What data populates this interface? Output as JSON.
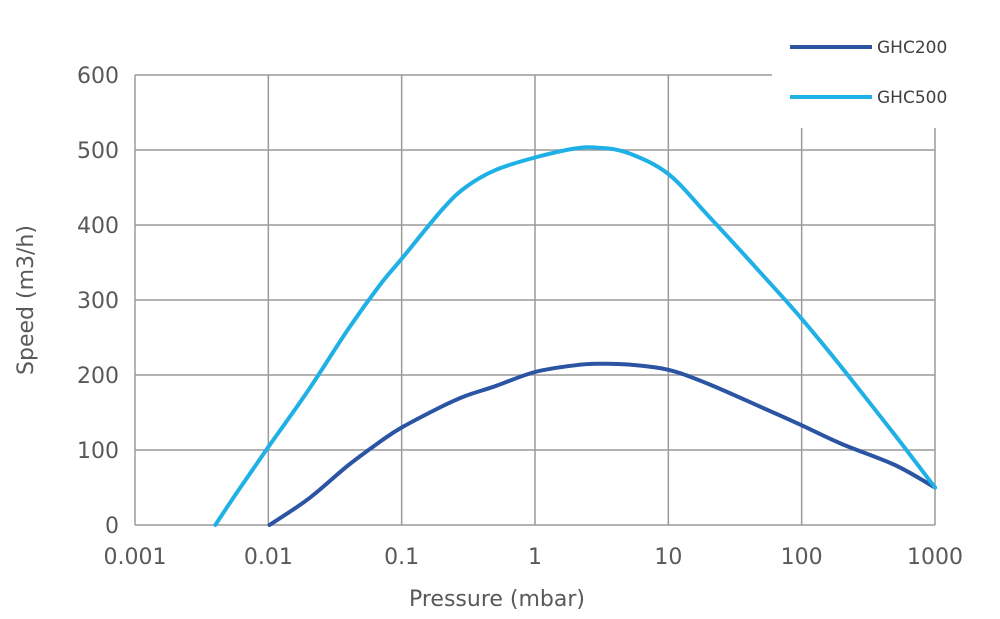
{
  "chart_data": {
    "type": "line",
    "title": "",
    "xlabel": "Pressure (mbar)",
    "ylabel": "Speed (m3/h)",
    "x_scale": "log",
    "xlim": [
      0.001,
      1000
    ],
    "ylim": [
      0,
      600
    ],
    "x_ticks": [
      "0.001",
      "0.01",
      "0.1",
      "1",
      "10",
      "100",
      "1000"
    ],
    "y_ticks": [
      "0",
      "100",
      "200",
      "300",
      "400",
      "500",
      "600"
    ],
    "grid": true,
    "legend_position": "top-right",
    "series": [
      {
        "name": "GHC200",
        "color": "#2b55a3",
        "x": [
          0.0102,
          0.02,
          0.04,
          0.07,
          0.1,
          0.2,
          0.3,
          0.5,
          1,
          2,
          3,
          5,
          10,
          20,
          50,
          100,
          200,
          500,
          1000
        ],
        "y": [
          0,
          35,
          80,
          112,
          130,
          158,
          172,
          185,
          204,
          213,
          215,
          214,
          207,
          188,
          157,
          133,
          108,
          80,
          50
        ]
      },
      {
        "name": "GHC500",
        "color": "#1fb0e6",
        "x": [
          0.004,
          0.006,
          0.01,
          0.02,
          0.04,
          0.07,
          0.1,
          0.2,
          0.3,
          0.5,
          1,
          2,
          3,
          5,
          10,
          20,
          50,
          100,
          200,
          500,
          1000
        ],
        "y": [
          0,
          47,
          104,
          180,
          262,
          322,
          355,
          420,
          450,
          473,
          490,
          502,
          503,
          496,
          468,
          412,
          335,
          275,
          210,
          120,
          50
        ]
      }
    ]
  }
}
